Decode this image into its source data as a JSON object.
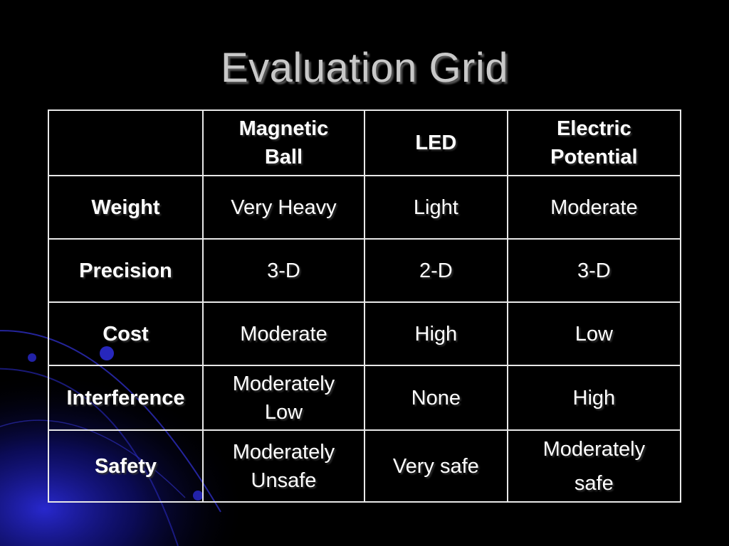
{
  "slide": {
    "title": "Evaluation Grid"
  },
  "table": {
    "header": {
      "corner": "",
      "columns": [
        "Magnetic Ball",
        "LED",
        "Electric Potential"
      ],
      "col1_line1": "Magnetic",
      "col1_line2": "Ball",
      "col2": "LED",
      "col3_line1": "Electric",
      "col3_line2": "Potential"
    },
    "rows": [
      {
        "label": "Weight",
        "magnetic_ball": "Very Heavy",
        "led": "Light",
        "electric_potential": "Moderate"
      },
      {
        "label": "Precision",
        "magnetic_ball": "3-D",
        "led": "2-D",
        "electric_potential": "3-D"
      },
      {
        "label": "Cost",
        "magnetic_ball": "Moderate",
        "led": "High",
        "electric_potential": "Low"
      },
      {
        "label": "Interference",
        "magnetic_ball_line1": "Moderately",
        "magnetic_ball_line2": "Low",
        "led": "None",
        "electric_potential": "High"
      },
      {
        "label": "Safety",
        "magnetic_ball_line1": "Moderately",
        "magnetic_ball_line2": "Unsafe",
        "led": "Very safe",
        "electric_potential_line1": "Moderately",
        "electric_potential_line2": "safe"
      }
    ]
  },
  "colors": {
    "background": "#000000",
    "title": "#c8c8c8",
    "text": "#ffffff",
    "border": "#e8e8e8",
    "accent": "#1a1aa8"
  }
}
